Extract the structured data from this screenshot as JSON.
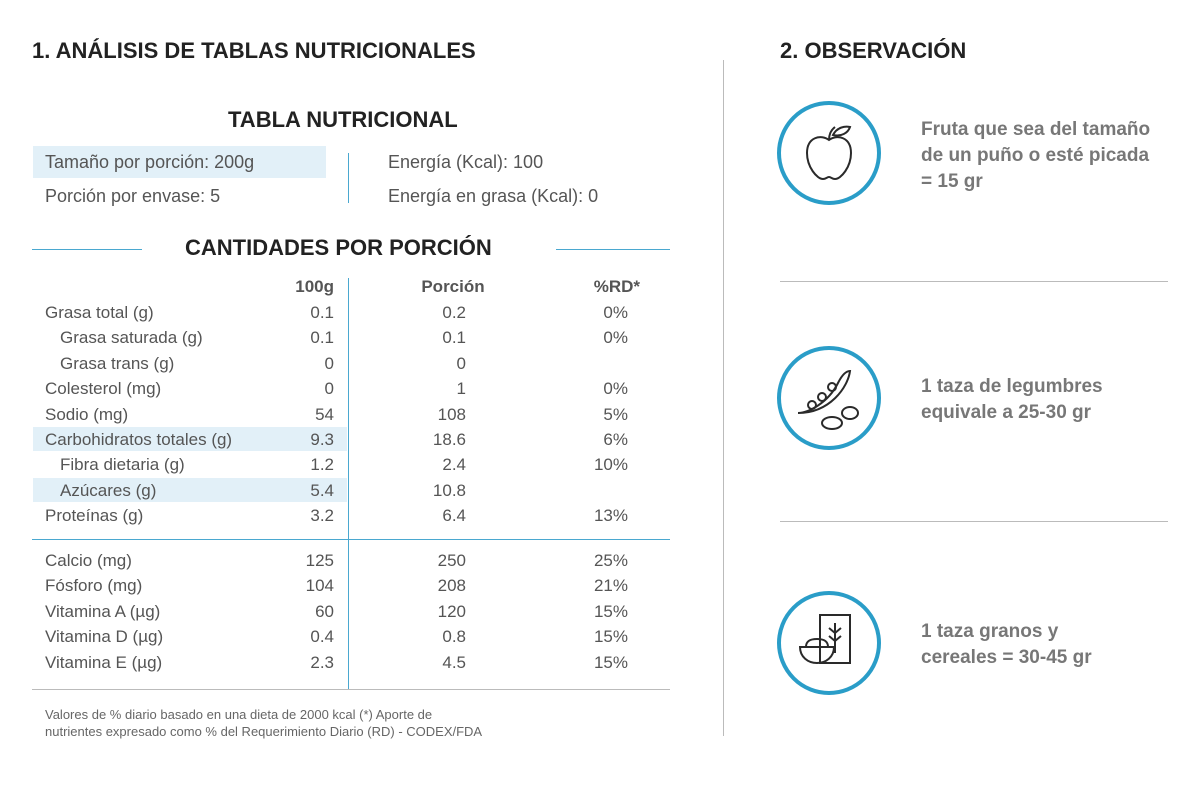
{
  "left": {
    "title": "1. ANÁLISIS DE TABLAS NUTRICIONALES",
    "table_title": "TABLA NUTRICIONAL",
    "summary": [
      [
        "Tamaño por porción: 200g",
        "Energía (Kcal): 100"
      ],
      [
        "Porción por envase: 5",
        "Energía en grasa (Kcal): 0"
      ]
    ],
    "section_title": "CANTIDADES POR PORCIÓN",
    "columns": [
      "100g",
      "Porción",
      "%RD*"
    ],
    "rows": [
      {
        "label": "Grasa total (g)",
        "per_100g": "0.1",
        "portion": "0.2",
        "rd": "0%"
      },
      {
        "label": "Grasa saturada (g)",
        "per_100g": "0.1",
        "portion": "0.1",
        "rd": "0%"
      },
      {
        "label": "Grasa trans (g)",
        "per_100g": "0",
        "portion": "0"
      },
      {
        "label": "Colesterol (mg)",
        "per_100g": "0",
        "portion": "1",
        "rd": "0%"
      },
      {
        "label": "Sodio (mg)",
        "per_100g": "54",
        "portion": "108",
        "rd": "5%"
      },
      {
        "label": "Carbohidratos totales (g)",
        "per_100g": "9.3",
        "portion": "18.6",
        "rd": "6%"
      },
      {
        "label": "Fibra dietaria (g)",
        "per_100g": "1.2",
        "portion": "2.4",
        "rd": "10%"
      },
      {
        "label": "Azúcares (g)",
        "per_100g": "5.4",
        "portion": "10.8"
      },
      {
        "label": "Proteínas (g)",
        "per_100g": "3.2",
        "portion": "6.4",
        "rd": "13%"
      }
    ],
    "rows2": [
      {
        "label": "Calcio (mg)",
        "per_100g": "125",
        "portion": "250",
        "rd": "25%"
      },
      {
        "label": "Fósforo (mg)",
        "per_100g": "104",
        "portion": "208",
        "rd": "21%"
      },
      {
        "label": "Vitamina A (µg)",
        "per_100g": "60",
        "portion": "120",
        "rd": "15%"
      },
      {
        "label": "Vitamina D (µg)",
        "per_100g": "0.4",
        "portion": "0.8",
        "rd": "15%"
      },
      {
        "label": "Vitamina E (µg)",
        "per_100g": "2.3",
        "portion": "4.5",
        "rd": "15%"
      }
    ],
    "footnote": [
      "Valores de % diario basado en una dieta de 2000 kcal (*) Aporte de",
      "nutrientes expresado como % del Requerimiento Diario (RD) - CODEX/FDA"
    ]
  },
  "right": {
    "title": "2. OBSERVACIÓN",
    "items": [
      {
        "lines": [
          "Fruta que sea del tamaño",
          "de un puño o esté picada",
          "= 15 gr"
        ]
      },
      {
        "lines": [
          "1 taza de legumbres",
          "equivale a 25-30 gr"
        ]
      },
      {
        "lines": [
          "1 taza granos y",
          "cereales = 30-45 gr"
        ]
      }
    ]
  }
}
